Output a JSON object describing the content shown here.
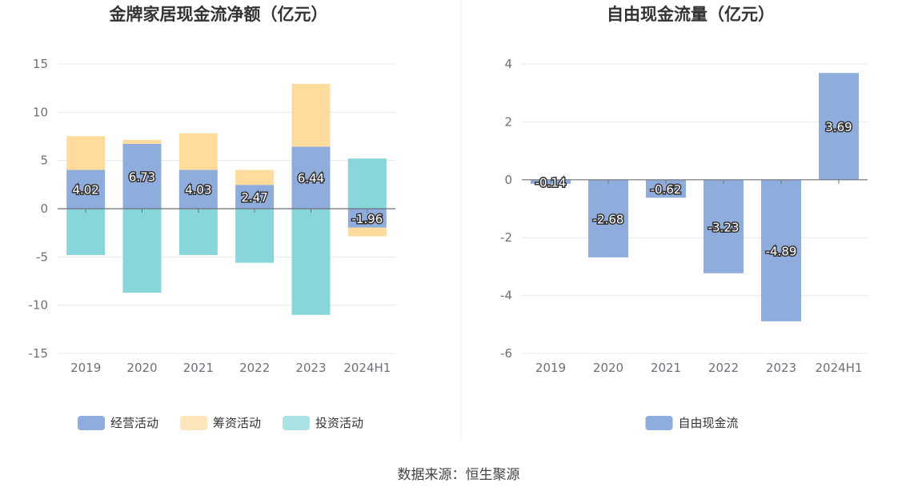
{
  "source_note": "数据来源：恒生聚源",
  "colors": {
    "operating": "#8eacdc",
    "financing": "#ffdb9c",
    "investing": "#87d6da",
    "fcf": "#8eacdc",
    "grid": "#e6e8f0",
    "axis": "#6e7079",
    "divider": "#eeeeee"
  },
  "chart_data": [
    {
      "type": "bar",
      "stacked": true,
      "title": "金牌家居现金流净额（亿元）",
      "categories": [
        "2019",
        "2020",
        "2021",
        "2022",
        "2023",
        "2024H1"
      ],
      "ylim": [
        -15,
        15
      ],
      "yticks": [
        15,
        10,
        5,
        0,
        -5,
        -10,
        -15
      ],
      "series": [
        {
          "key": "operating",
          "name": "经营活动",
          "values": [
            4.02,
            6.73,
            4.03,
            2.47,
            6.44,
            -1.96
          ],
          "labels": [
            "4.02",
            "6.73",
            "4.03",
            "2.47",
            "6.44",
            "-1.96"
          ],
          "show_labels": true
        },
        {
          "key": "financing",
          "name": "筹资活动",
          "values": [
            3.5,
            0.4,
            3.8,
            1.55,
            6.5,
            -0.9
          ],
          "show_labels": false
        },
        {
          "key": "investing",
          "name": "投资活动",
          "values": [
            -4.8,
            -8.7,
            -4.8,
            -5.6,
            -11.0,
            5.2
          ],
          "show_labels": false
        }
      ],
      "legend_position": "bottom-center"
    },
    {
      "type": "bar",
      "title": "自由现金流量（亿元）",
      "categories": [
        "2019",
        "2020",
        "2021",
        "2022",
        "2023",
        "2024H1"
      ],
      "ylim": [
        -6,
        4
      ],
      "yticks": [
        4,
        2,
        0,
        -2,
        -4,
        -6
      ],
      "series": [
        {
          "key": "fcf",
          "name": "自由现金流",
          "values": [
            -0.14,
            -2.68,
            -0.62,
            -3.23,
            -4.89,
            3.69
          ],
          "labels": [
            "-0.14",
            "-2.68",
            "-0.62",
            "-3.23",
            "-4.89",
            "3.69"
          ],
          "show_labels": true
        }
      ],
      "legend_position": "bottom-center"
    }
  ]
}
